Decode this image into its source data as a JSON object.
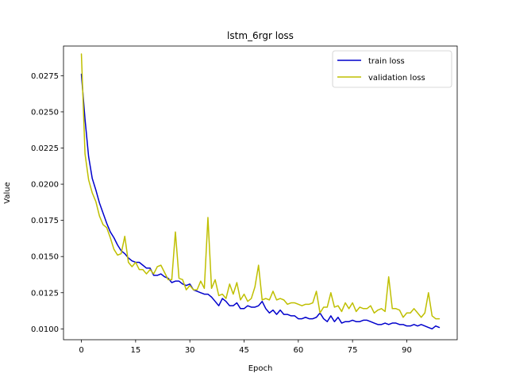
{
  "chart_data": {
    "type": "line",
    "title": "lstm_6rgr loss",
    "xlabel": "Epoch",
    "ylabel": "Value",
    "xlim": [
      -4.95,
      103.95
    ],
    "ylim": [
      0.00925,
      0.02955
    ],
    "xticks": [
      0,
      15,
      30,
      45,
      60,
      75,
      90
    ],
    "yticks": [
      0.01,
      0.0125,
      0.015,
      0.0175,
      0.02,
      0.0225,
      0.025,
      0.0275
    ],
    "ytick_labels": [
      "0.0100",
      "0.0125",
      "0.0150",
      "0.0175",
      "0.0200",
      "0.0225",
      "0.0250",
      "0.0275"
    ],
    "grid": false,
    "legend_position": "top-right",
    "series": [
      {
        "name": "train loss",
        "color": "#0000cc",
        "x": [
          0,
          1,
          2,
          3,
          4,
          5,
          6,
          7,
          8,
          9,
          10,
          11,
          12,
          13,
          14,
          15,
          16,
          17,
          18,
          19,
          20,
          21,
          22,
          23,
          24,
          25,
          26,
          27,
          28,
          29,
          30,
          31,
          32,
          33,
          34,
          35,
          36,
          37,
          38,
          39,
          40,
          41,
          42,
          43,
          44,
          45,
          46,
          47,
          48,
          49,
          50,
          51,
          52,
          53,
          54,
          55,
          56,
          57,
          58,
          59,
          60,
          61,
          62,
          63,
          64,
          65,
          66,
          67,
          68,
          69,
          70,
          71,
          72,
          73,
          74,
          75,
          76,
          77,
          78,
          79,
          80,
          81,
          82,
          83,
          84,
          85,
          86,
          87,
          88,
          89,
          90,
          91,
          92,
          93,
          94,
          95,
          96,
          97,
          98,
          99
        ],
        "values": [
          0.0276,
          0.0245,
          0.0219,
          0.0204,
          0.0196,
          0.0187,
          0.018,
          0.0173,
          0.0167,
          0.0163,
          0.0158,
          0.0154,
          0.0152,
          0.0149,
          0.0147,
          0.0146,
          0.0146,
          0.0144,
          0.0142,
          0.0142,
          0.0137,
          0.0137,
          0.0138,
          0.0136,
          0.0135,
          0.0132,
          0.0133,
          0.0133,
          0.0131,
          0.013,
          0.0131,
          0.0127,
          0.0126,
          0.0125,
          0.0124,
          0.0124,
          0.0122,
          0.0119,
          0.0116,
          0.0121,
          0.0119,
          0.0116,
          0.0116,
          0.0118,
          0.0114,
          0.0114,
          0.0116,
          0.0115,
          0.0115,
          0.0116,
          0.0119,
          0.0114,
          0.0111,
          0.0113,
          0.011,
          0.0113,
          0.011,
          0.011,
          0.0109,
          0.0109,
          0.0107,
          0.0107,
          0.0108,
          0.0107,
          0.0107,
          0.0108,
          0.0111,
          0.0107,
          0.0105,
          0.0109,
          0.0105,
          0.0108,
          0.0104,
          0.0105,
          0.0105,
          0.0106,
          0.0105,
          0.0105,
          0.0106,
          0.0106,
          0.0105,
          0.0104,
          0.0103,
          0.0103,
          0.0104,
          0.0103,
          0.0104,
          0.0104,
          0.0103,
          0.0103,
          0.0102,
          0.0102,
          0.0103,
          0.0102,
          0.0103,
          0.0102,
          0.0101,
          0.01,
          0.0102,
          0.0101
        ]
      },
      {
        "name": "validation loss",
        "color": "#bfbf00",
        "x": [
          0,
          1,
          2,
          3,
          4,
          5,
          6,
          7,
          8,
          9,
          10,
          11,
          12,
          13,
          14,
          15,
          16,
          17,
          18,
          19,
          20,
          21,
          22,
          23,
          24,
          25,
          26,
          27,
          28,
          29,
          30,
          31,
          32,
          33,
          34,
          35,
          36,
          37,
          38,
          39,
          40,
          41,
          42,
          43,
          44,
          45,
          46,
          47,
          48,
          49,
          50,
          51,
          52,
          53,
          54,
          55,
          56,
          57,
          58,
          59,
          60,
          61,
          62,
          63,
          64,
          65,
          66,
          67,
          68,
          69,
          70,
          71,
          72,
          73,
          74,
          75,
          76,
          77,
          78,
          79,
          80,
          81,
          82,
          83,
          84,
          85,
          86,
          87,
          88,
          89,
          90,
          91,
          92,
          93,
          94,
          95,
          96,
          97,
          98,
          99
        ],
        "values": [
          0.029,
          0.0221,
          0.0203,
          0.0194,
          0.0188,
          0.0178,
          0.0172,
          0.017,
          0.0163,
          0.0155,
          0.0151,
          0.0152,
          0.0164,
          0.0146,
          0.0143,
          0.0146,
          0.0141,
          0.0141,
          0.0138,
          0.0141,
          0.0138,
          0.0143,
          0.0144,
          0.0139,
          0.0134,
          0.0134,
          0.0167,
          0.0135,
          0.0134,
          0.0127,
          0.013,
          0.0127,
          0.0127,
          0.0133,
          0.0128,
          0.0177,
          0.0128,
          0.0134,
          0.0123,
          0.0124,
          0.0121,
          0.0131,
          0.0124,
          0.0132,
          0.012,
          0.0124,
          0.0119,
          0.0121,
          0.0129,
          0.0144,
          0.012,
          0.0121,
          0.012,
          0.0126,
          0.012,
          0.0121,
          0.012,
          0.0117,
          0.0118,
          0.0118,
          0.0117,
          0.0116,
          0.0117,
          0.0117,
          0.0118,
          0.0126,
          0.0111,
          0.0115,
          0.0115,
          0.0125,
          0.0115,
          0.0116,
          0.0112,
          0.0118,
          0.0114,
          0.0118,
          0.0112,
          0.0115,
          0.0114,
          0.0114,
          0.0116,
          0.0111,
          0.0113,
          0.0114,
          0.0112,
          0.0136,
          0.0114,
          0.0114,
          0.0113,
          0.0108,
          0.0111,
          0.0111,
          0.0114,
          0.0111,
          0.0108,
          0.0111,
          0.0125,
          0.0109,
          0.0107,
          0.0107
        ]
      }
    ]
  }
}
